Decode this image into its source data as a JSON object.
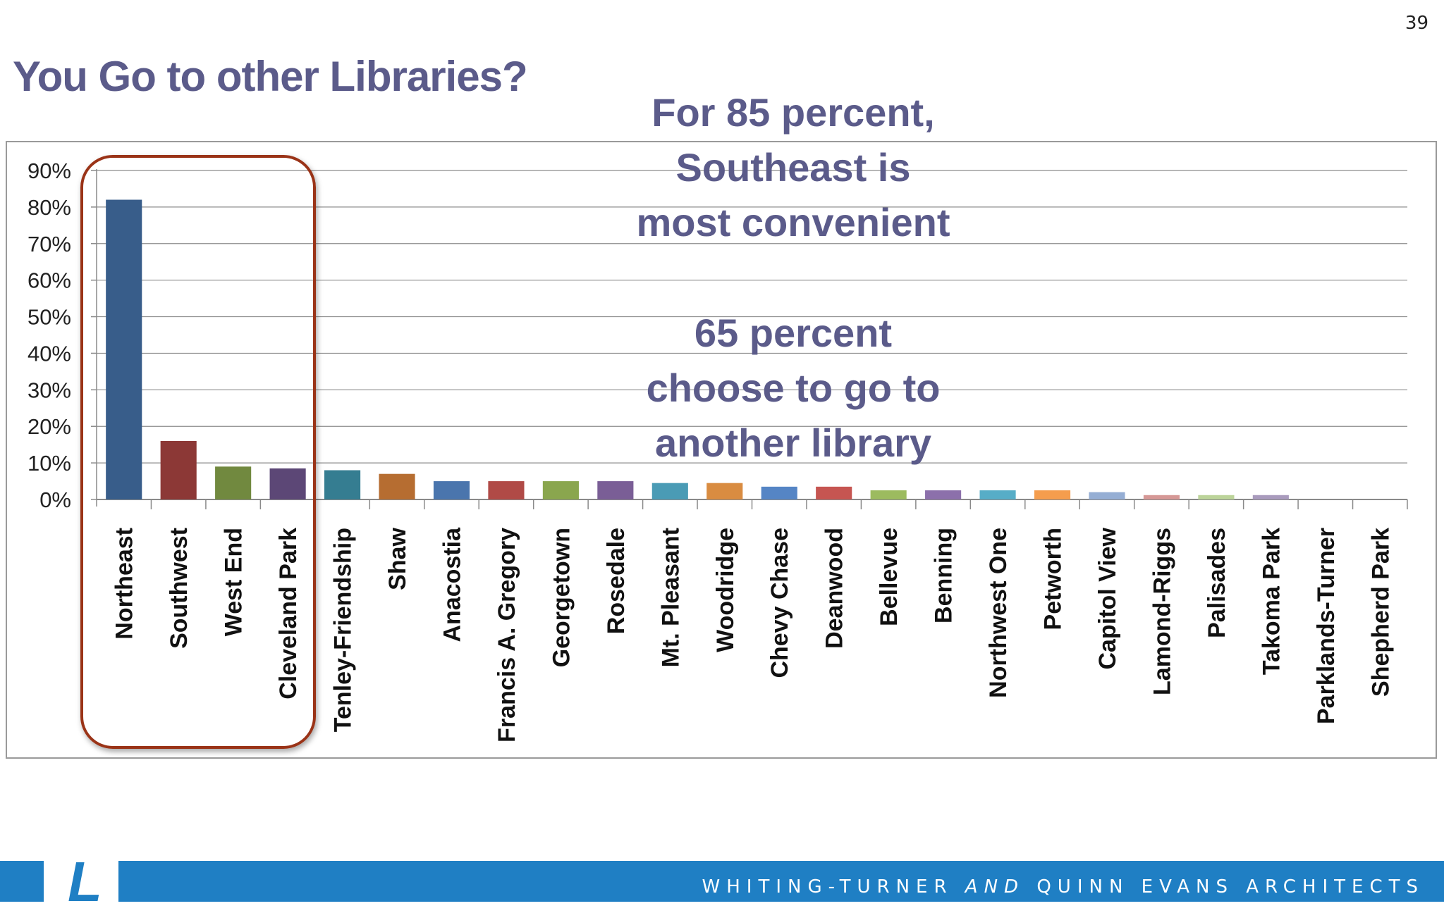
{
  "slide": {
    "number": "39",
    "title": "You Go to other Libraries?"
  },
  "callouts": {
    "convenient": [
      "For 85 percent,",
      "Southeast is",
      "most convenient"
    ],
    "another": [
      "65 percent",
      "choose to go to",
      "another library"
    ]
  },
  "footer": {
    "logo": "L",
    "company_part1": "WHITING-TURNER",
    "company_and": "AND",
    "company_part2": "QUINN EVANS ARCHITECTS"
  },
  "colors": {
    "title": "#5b5b8a",
    "highlight": "#9a3317",
    "footer": "#1f7fc4"
  },
  "chart_data": {
    "type": "bar",
    "ylim": [
      0,
      0.9
    ],
    "ytick_step": 0.1,
    "ytick_labels": [
      "0%",
      "10%",
      "20%",
      "30%",
      "40%",
      "50%",
      "60%",
      "70%",
      "80%",
      "90%"
    ],
    "grid": true,
    "categories": [
      "Northeast",
      "Southwest",
      "West End",
      "Cleveland Park",
      "Tenley-Friendship",
      "Shaw",
      "Anacostia",
      "Francis A. Gregory",
      "Georgetown",
      "Rosedale",
      "Mt. Pleasant",
      "Woodridge",
      "Chevy Chase",
      "Deanwood",
      "Bellevue",
      "Benning",
      "Northwest One",
      "Petworth",
      "Capitol View",
      "Lamond-Riggs",
      "Palisades",
      "Takoma Park",
      "Parklands-Turner",
      "Shepherd Park"
    ],
    "values": [
      0.82,
      0.16,
      0.09,
      0.085,
      0.08,
      0.07,
      0.05,
      0.05,
      0.05,
      0.05,
      0.045,
      0.045,
      0.035,
      0.035,
      0.025,
      0.025,
      0.025,
      0.025,
      0.02,
      0.012,
      0.012,
      0.012,
      0,
      0
    ],
    "colors": [
      "#385d8a",
      "#8c3836",
      "#71893f",
      "#5c4776",
      "#357d91",
      "#b66d31",
      "#4a75ad",
      "#b04a46",
      "#8aa64e",
      "#7a5e96",
      "#4a9bb5",
      "#d98c41",
      "#5585c5",
      "#c65551",
      "#9cbb5f",
      "#8c70ab",
      "#57adc7",
      "#f59d4d",
      "#95aed4",
      "#d69896",
      "#bcd49a",
      "#a99bbd",
      "#a0d0e0",
      "#f7c7a0"
    ]
  }
}
